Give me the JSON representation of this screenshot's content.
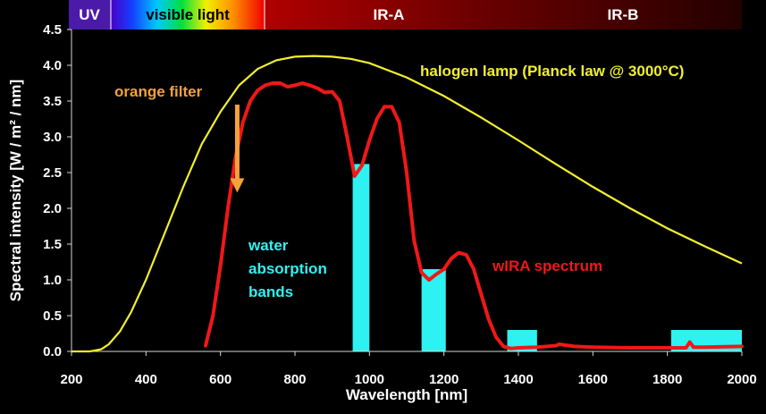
{
  "chart_data": {
    "type": "line",
    "xlabel": "Wavelength [nm]",
    "ylabel": "Spectral intensity [W / m² / nm]",
    "xlim": [
      200,
      2000
    ],
    "ylim": [
      0,
      4.5
    ],
    "x_ticks": [
      "200",
      "400",
      "600",
      "800",
      "1000",
      "1200",
      "1400",
      "1600",
      "1800",
      "2000"
    ],
    "y_ticks": [
      "0.0",
      "0.5",
      "1.0",
      "1.5",
      "2.0",
      "2.5",
      "3.0",
      "3.5",
      "4.0",
      "4.5"
    ],
    "spectral_bands": [
      {
        "name": "UV",
        "start": 200,
        "end": 310
      },
      {
        "name": "visible light",
        "start": 310,
        "end": 720
      },
      {
        "name": "IR-A",
        "start": 720,
        "end": 1400
      },
      {
        "name": "IR-B",
        "start": 1400,
        "end": 2000
      }
    ],
    "series": [
      {
        "name": "halogen lamp (Planck law @ 3000°C)",
        "color": "#f2ef2e",
        "x": [
          200,
          250,
          280,
          300,
          330,
          360,
          400,
          450,
          500,
          550,
          600,
          650,
          700,
          750,
          800,
          850,
          900,
          950,
          1000,
          1100,
          1200,
          1300,
          1400,
          1500,
          1600,
          1700,
          1800,
          1900,
          2000
        ],
        "y": [
          0.0,
          0.0,
          0.03,
          0.1,
          0.28,
          0.55,
          1.0,
          1.65,
          2.3,
          2.9,
          3.35,
          3.72,
          3.95,
          4.07,
          4.12,
          4.13,
          4.12,
          4.09,
          4.03,
          3.83,
          3.57,
          3.27,
          2.95,
          2.62,
          2.3,
          2.0,
          1.72,
          1.47,
          1.23
        ]
      },
      {
        "name": "wIRA spectrum",
        "color": "#f01818",
        "x": [
          560,
          580,
          600,
          620,
          640,
          660,
          680,
          700,
          720,
          740,
          760,
          780,
          800,
          820,
          840,
          860,
          880,
          900,
          920,
          940,
          960,
          980,
          1000,
          1020,
          1040,
          1060,
          1080,
          1100,
          1120,
          1140,
          1160,
          1180,
          1200,
          1220,
          1240,
          1260,
          1280,
          1300,
          1320,
          1340,
          1360,
          1380,
          1400,
          1450,
          1500,
          1510,
          1550,
          1600,
          1700,
          1800,
          1850,
          1860,
          1870,
          1900,
          2000
        ],
        "y": [
          0.08,
          0.5,
          1.2,
          2.0,
          2.7,
          3.2,
          3.5,
          3.65,
          3.72,
          3.75,
          3.75,
          3.7,
          3.72,
          3.75,
          3.72,
          3.68,
          3.62,
          3.63,
          3.5,
          3.0,
          2.45,
          2.6,
          2.95,
          3.25,
          3.42,
          3.42,
          3.2,
          2.5,
          1.55,
          1.1,
          1.0,
          1.08,
          1.15,
          1.3,
          1.38,
          1.35,
          1.15,
          0.8,
          0.45,
          0.2,
          0.07,
          0.04,
          0.05,
          0.06,
          0.08,
          0.1,
          0.07,
          0.06,
          0.05,
          0.05,
          0.05,
          0.13,
          0.06,
          0.06,
          0.07
        ]
      }
    ],
    "absorption_bands": [
      {
        "start": 955,
        "end": 1000,
        "height": 2.62
      },
      {
        "start": 1140,
        "end": 1205,
        "height": 1.15
      },
      {
        "start": 1370,
        "end": 1450,
        "height": 0.3
      },
      {
        "start": 1810,
        "end": 2000,
        "height": 0.3
      }
    ],
    "annotations": {
      "orange_filter": {
        "text": "orange filter",
        "arrow_x": 645,
        "arrow_from": 3.45,
        "arrow_to": 2.22,
        "color": "#f4a23a"
      },
      "water_absorption": {
        "lines": [
          "water",
          "absorption",
          "bands"
        ],
        "color": "#2ef2f2"
      },
      "halogen_label": "halogen lamp (Planck law @ 3000°C)",
      "wira_label": "wIRA spectrum"
    },
    "colors": {
      "halogen": "#f2ef2e",
      "wira": "#f01818",
      "water": "#2ef2f2",
      "orange": "#f4a23a",
      "axis": "#d9d9d9",
      "background": "#000000"
    }
  }
}
